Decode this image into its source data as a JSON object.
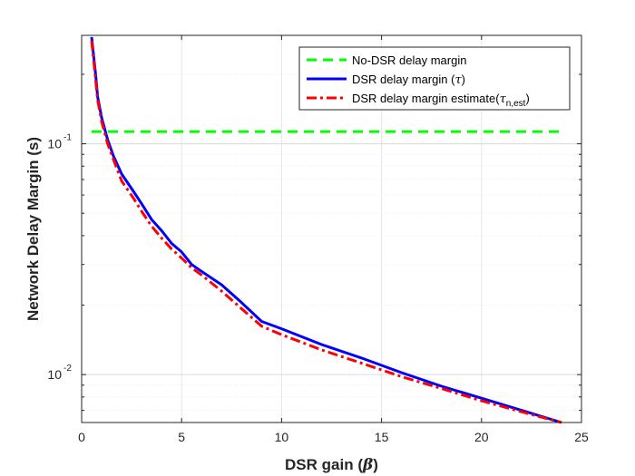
{
  "chart_data": {
    "type": "line",
    "xlabel_prefix": "DSR gain (",
    "xlabel_symbol": "β",
    "xlabel_suffix": ")",
    "ylabel": "Network Delay Margin (s)",
    "xlim": [
      0,
      25
    ],
    "ylim": [
      0.0062,
      0.295
    ],
    "yscale": "log",
    "grid": true,
    "legend_position": "top-right",
    "x_ticks": [
      0,
      5,
      10,
      15,
      20,
      25
    ],
    "x_tick_labels": [
      "0",
      "5",
      "10",
      "15",
      "20",
      "25"
    ],
    "y_ticks": [
      0.01,
      0.1
    ],
    "y_tick_labels": [
      {
        "base": "10",
        "exp": "-2"
      },
      {
        "base": "10",
        "exp": "-1"
      }
    ],
    "series": [
      {
        "name": "No-DSR delay margin",
        "color": "#00ff00",
        "style": "dashed",
        "x": [
          0.5,
          24
        ],
        "y": [
          0.113,
          0.113
        ]
      },
      {
        "name_prefix": "DSR delay margin (",
        "name_symbol": "τ",
        "name_suffix": ")",
        "color": "#0000ff",
        "style": "solid",
        "x": [
          0.5,
          0.7,
          0.8,
          1.0,
          1.3,
          1.6,
          2.0,
          2.6,
          3.0,
          3.5,
          4.0,
          4.5,
          5.0,
          5.5,
          6.0,
          7.0,
          8.0,
          9.0,
          10.0,
          12.0,
          14.0,
          16.0,
          18.0,
          20.0,
          22.0,
          24.0
        ],
        "y": [
          0.29,
          0.2,
          0.16,
          0.13,
          0.104,
          0.088,
          0.074,
          0.062,
          0.055,
          0.047,
          0.042,
          0.037,
          0.034,
          0.03,
          0.028,
          0.0245,
          0.0205,
          0.017,
          0.0158,
          0.0135,
          0.0118,
          0.0102,
          0.0089,
          0.0079,
          0.007,
          0.0062
        ]
      },
      {
        "name_prefix": "DSR delay margin estimate(",
        "name_symbol": "τ",
        "name_sub": "n,est",
        "name_suffix": ")",
        "color": "#ff0000",
        "style": "dashdot",
        "x": [
          0.5,
          0.7,
          0.8,
          1.0,
          1.3,
          1.6,
          2.0,
          2.6,
          3.0,
          3.5,
          4.0,
          4.5,
          5.0,
          5.5,
          6.0,
          7.0,
          8.0,
          9.0,
          10.0,
          12.0,
          14.0,
          16.0,
          18.0,
          20.0,
          22.0,
          24.0
        ],
        "y": [
          0.28,
          0.19,
          0.155,
          0.125,
          0.1,
          0.085,
          0.069,
          0.058,
          0.051,
          0.044,
          0.039,
          0.035,
          0.032,
          0.029,
          0.027,
          0.023,
          0.0193,
          0.0162,
          0.0149,
          0.0128,
          0.0112,
          0.0098,
          0.0087,
          0.0077,
          0.0069,
          0.0062
        ]
      }
    ]
  }
}
